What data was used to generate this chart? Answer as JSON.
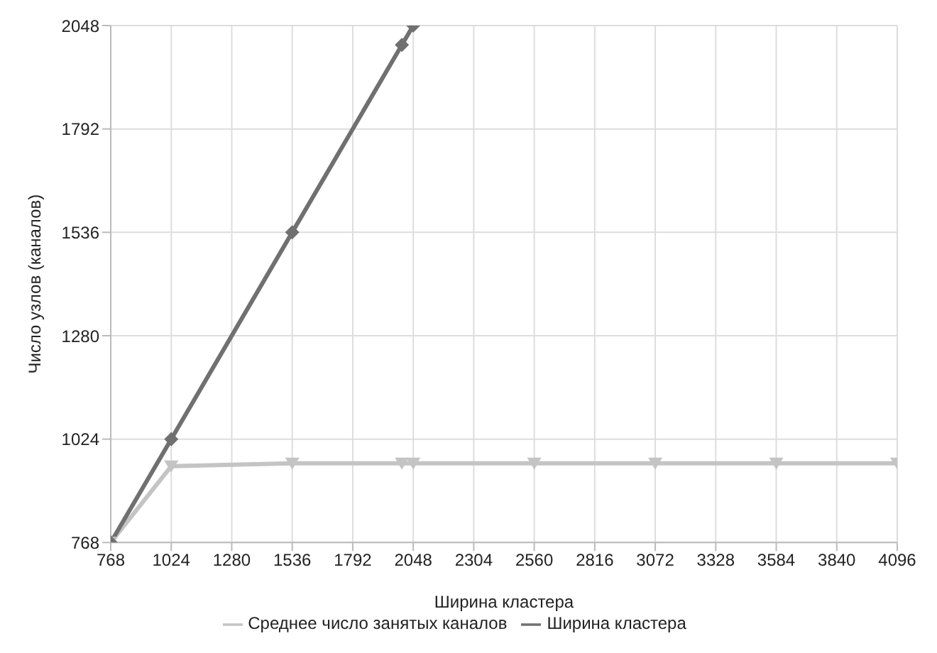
{
  "chart_data": {
    "type": "line",
    "xlabel": "Ширина кластера",
    "ylabel": "Число узлов (каналов)",
    "xlim": [
      768,
      4096
    ],
    "xticks": [
      768,
      1024,
      1280,
      1536,
      1792,
      2048,
      2304,
      2560,
      2816,
      3072,
      3328,
      3584,
      3840,
      4096
    ],
    "ylim": [
      768,
      2048
    ],
    "yticks": [
      768,
      1024,
      1280,
      1536,
      1792,
      2048
    ],
    "grid": true,
    "legend": "bottom",
    "series": [
      {
        "name": "Среднее число занятых каналов",
        "color": "#c4c4c4",
        "marker": "triangle",
        "x": [
          768,
          1024,
          1536,
          2000,
          2048,
          2560,
          3072,
          3584,
          4096
        ],
        "values": [
          768,
          957,
          964,
          964,
          964,
          964,
          964,
          964,
          964
        ]
      },
      {
        "name": "Ширина кластера",
        "color": "#707070",
        "marker": "diamond",
        "x": [
          768,
          1024,
          1536,
          2000,
          2048
        ],
        "values": [
          768,
          1024,
          1536,
          2000,
          2048
        ]
      }
    ]
  }
}
